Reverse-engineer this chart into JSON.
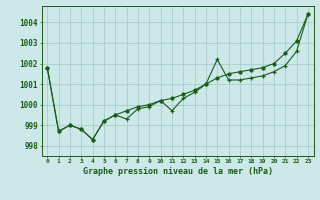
{
  "xlabel": "Graphe pression niveau de la mer (hPa)",
  "background_color": "#cce8e8",
  "grid_color": "#aacccc",
  "line_color": "#1a5c1a",
  "hours": [
    0,
    1,
    2,
    3,
    4,
    5,
    6,
    7,
    8,
    9,
    10,
    11,
    12,
    13,
    14,
    15,
    16,
    17,
    18,
    19,
    20,
    21,
    22,
    23
  ],
  "p_jagged": [
    1001.8,
    998.7,
    999.0,
    998.8,
    998.3,
    999.2,
    999.5,
    999.3,
    999.8,
    999.9,
    1000.2,
    999.7,
    1000.3,
    1000.6,
    1001.0,
    1002.2,
    1001.2,
    1001.2,
    1001.3,
    1001.4,
    1001.6,
    1001.9,
    1002.6,
    1004.4
  ],
  "p_smooth": [
    1001.8,
    998.7,
    999.0,
    998.8,
    998.3,
    999.2,
    999.5,
    999.7,
    999.9,
    1000.0,
    1000.2,
    1000.3,
    1000.5,
    1000.7,
    1001.0,
    1001.3,
    1001.5,
    1001.6,
    1001.7,
    1001.8,
    1002.0,
    1002.5,
    1003.1,
    1004.4
  ],
  "ylim": [
    997.5,
    1004.8
  ],
  "yticks": [
    998,
    999,
    1000,
    1001,
    1002,
    1003,
    1004
  ],
  "xtick_labels": [
    "0",
    "1",
    "2",
    "3",
    "4",
    "5",
    "6",
    "7",
    "8",
    "9",
    "10",
    "11",
    "12",
    "13",
    "14",
    "15",
    "16",
    "17",
    "18",
    "19",
    "20",
    "21",
    "22",
    "23"
  ]
}
